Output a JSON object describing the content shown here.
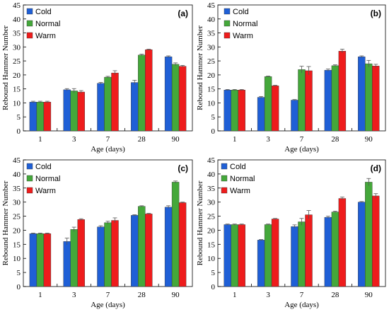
{
  "chart_data": [
    {
      "type": "bar",
      "panel_label": "(a)",
      "categories": [
        "1",
        "3",
        "7",
        "28",
        "90"
      ],
      "xlabel": "Age (days)",
      "ylabel": "Rebound Hammer Number",
      "ylim": [
        0,
        45
      ],
      "yticks": [
        0,
        5,
        10,
        15,
        20,
        25,
        30,
        35,
        40,
        45
      ],
      "grid": false,
      "legend_position": "top-left",
      "series": [
        {
          "name": "Cold",
          "color": "#1f5fd6",
          "values": [
            10.3,
            14.7,
            17.0,
            17.3,
            26.5
          ],
          "errors": [
            0.3,
            0.4,
            0.3,
            0.8,
            0.3
          ]
        },
        {
          "name": "Normal",
          "color": "#44a83a",
          "values": [
            10.3,
            14.3,
            19.2,
            27.1,
            23.8
          ],
          "errors": [
            0.3,
            0.8,
            0.3,
            0.3,
            0.5
          ]
        },
        {
          "name": "Warm",
          "color": "#ee1c1c",
          "values": [
            10.3,
            13.9,
            20.7,
            29.0,
            23.1
          ],
          "errors": [
            0.3,
            0.5,
            0.8,
            0.2,
            0.3
          ]
        }
      ]
    },
    {
      "type": "bar",
      "panel_label": "(b)",
      "categories": [
        "1",
        "3",
        "7",
        "28",
        "90"
      ],
      "xlabel": "Age (days)",
      "ylabel": "Rebound Hammer Number",
      "ylim": [
        0,
        45
      ],
      "yticks": [
        0,
        5,
        10,
        15,
        20,
        25,
        30,
        35,
        40,
        45
      ],
      "grid": false,
      "legend_position": "top-right",
      "series": [
        {
          "name": "Cold",
          "color": "#1f5fd6",
          "values": [
            14.6,
            12.0,
            11.0,
            21.7,
            26.5
          ],
          "errors": [
            0.2,
            0.3,
            0.2,
            0.4,
            0.3
          ]
        },
        {
          "name": "Normal",
          "color": "#44a83a",
          "values": [
            14.6,
            19.4,
            21.9,
            23.3,
            24.0
          ],
          "errors": [
            0.2,
            0.2,
            1.2,
            0.3,
            1.2
          ]
        },
        {
          "name": "Warm",
          "color": "#ee1c1c",
          "values": [
            14.6,
            16.1,
            21.5,
            28.5,
            23.2
          ],
          "errors": [
            0.2,
            0.2,
            1.5,
            0.7,
            0.6
          ]
        }
      ]
    },
    {
      "type": "bar",
      "panel_label": "(c)",
      "categories": [
        "1",
        "3",
        "7",
        "28",
        "90"
      ],
      "xlabel": "Age (days)",
      "ylabel": "Rebound Hammer Number",
      "ylim": [
        0,
        45
      ],
      "yticks": [
        0,
        5,
        10,
        15,
        20,
        25,
        30,
        35,
        40,
        45
      ],
      "grid": false,
      "legend_position": "top-left",
      "series": [
        {
          "name": "Cold",
          "color": "#1f5fd6",
          "values": [
            18.8,
            16.0,
            21.2,
            25.3,
            28.2
          ],
          "errors": [
            0.2,
            1.2,
            0.4,
            0.2,
            0.5
          ]
        },
        {
          "name": "Normal",
          "color": "#44a83a",
          "values": [
            18.8,
            20.3,
            22.7,
            28.5,
            37.1
          ],
          "errors": [
            0.2,
            0.8,
            0.5,
            0.2,
            0.4
          ]
        },
        {
          "name": "Warm",
          "color": "#ee1c1c",
          "values": [
            18.8,
            23.8,
            23.5,
            25.8,
            29.8
          ],
          "errors": [
            0.2,
            0.3,
            0.9,
            0.2,
            0.2
          ]
        }
      ]
    },
    {
      "type": "bar",
      "panel_label": "(d)",
      "categories": [
        "1",
        "3",
        "7",
        "28",
        "90"
      ],
      "xlabel": "Age (days)",
      "ylabel": "Rebound Hammer Number",
      "ylim": [
        0,
        45
      ],
      "yticks": [
        0,
        5,
        10,
        15,
        20,
        25,
        30,
        35,
        40,
        45
      ],
      "grid": false,
      "legend_position": "top-left",
      "series": [
        {
          "name": "Cold",
          "color": "#1f5fd6",
          "values": [
            22.0,
            16.5,
            21.3,
            24.6,
            30.0
          ],
          "errors": [
            0.2,
            0.2,
            0.6,
            0.4,
            0.2
          ]
        },
        {
          "name": "Normal",
          "color": "#44a83a",
          "values": [
            22.0,
            22.0,
            23.0,
            26.5,
            37.1
          ],
          "errors": [
            0.2,
            0.2,
            1.2,
            0.3,
            1.3
          ]
        },
        {
          "name": "Warm",
          "color": "#ee1c1c",
          "values": [
            22.0,
            24.0,
            25.5,
            31.3,
            32.2
          ],
          "errors": [
            0.2,
            0.2,
            1.5,
            0.5,
            0.8
          ]
        }
      ]
    }
  ]
}
